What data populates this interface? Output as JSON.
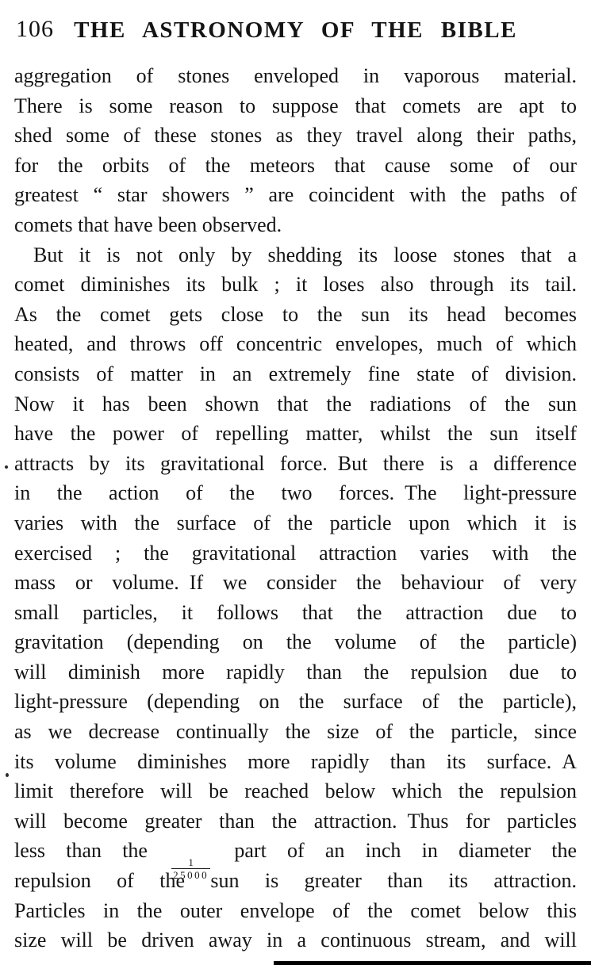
{
  "header": {
    "page_number": "106",
    "title": "THE ASTRONOMY OF THE BIBLE"
  },
  "body": {
    "lines": [
      {
        "text": "aggregation of stones enveloped in vaporous material.",
        "justify": true
      },
      {
        "text": "There is some reason to suppose that comets are apt to",
        "justify": true
      },
      {
        "text": "shed some of these stones as they travel along their paths,",
        "justify": true
      },
      {
        "text": "for the orbits of the meteors that cause some of our",
        "justify": true
      },
      {
        "text": "greatest “ star showers ” are coincident with the paths of",
        "justify": true
      },
      {
        "text": "comets that have been observed.",
        "justify": false
      },
      {
        "text": "But it is not only by shedding its loose stones that a",
        "justify": true,
        "indent": true
      },
      {
        "text": "comet diminishes its bulk ; it loses also through its tail.",
        "justify": true
      },
      {
        "text": "As the comet gets close to the sun its head becomes",
        "justify": true
      },
      {
        "text": "heated, and throws off concentric envelopes, much of which",
        "justify": true
      },
      {
        "text": "consists of matter in an extremely fine state of division.",
        "justify": true
      },
      {
        "text": "Now it has been shown that the radiations of the sun",
        "justify": true
      },
      {
        "text": "have the power of repelling matter, whilst the sun itself",
        "justify": true
      },
      {
        "text": "attracts by its gravitational force. But there is a difference",
        "justify": true
      },
      {
        "text": "in the action of the two forces. The light-pressure",
        "justify": true
      },
      {
        "text": "varies with the surface of the particle upon which it is",
        "justify": true
      },
      {
        "text": "exercised ; the gravitational attraction varies with the",
        "justify": true
      },
      {
        "text": "mass or volume. If we consider the behaviour of very",
        "justify": true
      },
      {
        "text": "small particles, it follows that the attraction due to",
        "justify": true
      },
      {
        "text": "gravitation (depending on the volume of the particle)",
        "justify": true
      },
      {
        "text": "will diminish more rapidly than the repulsion due to",
        "justify": true
      },
      {
        "text": "light-pressure (depending on the surface of the particle),",
        "justify": true
      },
      {
        "text": "as we decrease continually the size of the particle, since",
        "justify": true
      },
      {
        "text": "its volume diminishes more rapidly than its surface. A",
        "justify": true
      },
      {
        "text": "limit therefore will be reached below which the repulsion",
        "justify": true
      },
      {
        "text": "will become greater than the attraction. Thus for particles",
        "justify": true
      },
      {
        "justify": true,
        "segments": [
          {
            "type": "text",
            "value": "less than the "
          },
          {
            "type": "fraction",
            "numerator": "1",
            "denominator": "25000"
          },
          {
            "type": "text",
            "value": " part of an inch in diameter the"
          }
        ]
      },
      {
        "text": "repulsion of the sun is greater than its attraction.",
        "justify": true
      },
      {
        "text": "Particles in the outer envelope of the comet below this",
        "justify": true
      },
      {
        "text": "size will be driven away in a continuous stream, and will",
        "justify": true
      }
    ]
  }
}
